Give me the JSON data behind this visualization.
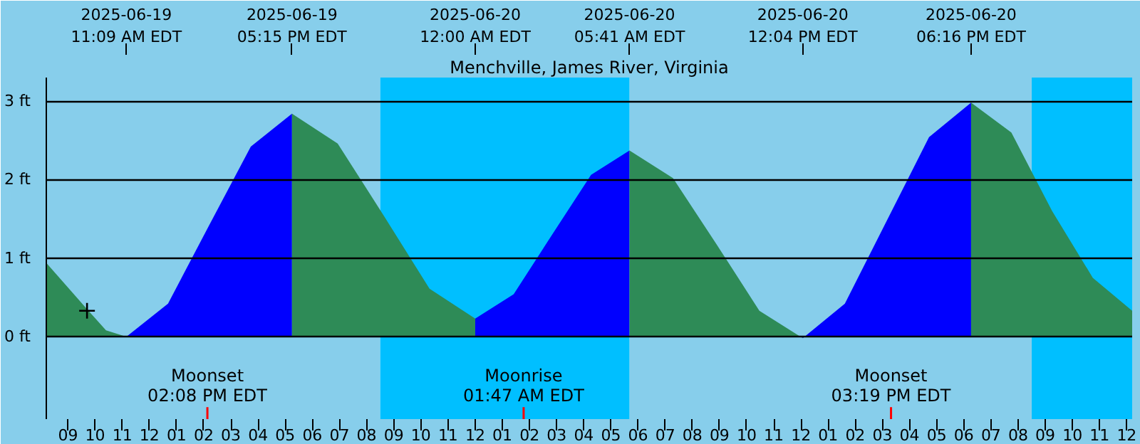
{
  "chart_data": {
    "type": "area",
    "title": "Menchville, James River, Virginia",
    "xlim": [
      "2025-06-19T08:12",
      "2025-06-21T00:12"
    ],
    "xticks": [
      {
        "value": "2025-06-19T09:00",
        "label": "09"
      },
      {
        "value": "2025-06-19T10:00",
        "label": "10"
      },
      {
        "value": "2025-06-19T11:00",
        "label": "11"
      },
      {
        "value": "2025-06-19T12:00",
        "label": "12"
      },
      {
        "value": "2025-06-19T13:00",
        "label": "01"
      },
      {
        "value": "2025-06-19T14:00",
        "label": "02"
      },
      {
        "value": "2025-06-19T15:00",
        "label": "03"
      },
      {
        "value": "2025-06-19T16:00",
        "label": "04"
      },
      {
        "value": "2025-06-19T17:00",
        "label": "05"
      },
      {
        "value": "2025-06-19T18:00",
        "label": "06"
      },
      {
        "value": "2025-06-19T19:00",
        "label": "07"
      },
      {
        "value": "2025-06-19T20:00",
        "label": "08"
      },
      {
        "value": "2025-06-19T21:00",
        "label": "09"
      },
      {
        "value": "2025-06-19T22:00",
        "label": "10"
      },
      {
        "value": "2025-06-19T23:00",
        "label": "11"
      },
      {
        "value": "2025-06-20T00:00",
        "label": "12"
      },
      {
        "value": "2025-06-20T01:00",
        "label": "01"
      },
      {
        "value": "2025-06-20T02:00",
        "label": "02"
      },
      {
        "value": "2025-06-20T03:00",
        "label": "03"
      },
      {
        "value": "2025-06-20T04:00",
        "label": "04"
      },
      {
        "value": "2025-06-20T05:00",
        "label": "05"
      },
      {
        "value": "2025-06-20T06:00",
        "label": "06"
      },
      {
        "value": "2025-06-20T07:00",
        "label": "07"
      },
      {
        "value": "2025-06-20T08:00",
        "label": "08"
      },
      {
        "value": "2025-06-20T09:00",
        "label": "09"
      },
      {
        "value": "2025-06-20T10:00",
        "label": "10"
      },
      {
        "value": "2025-06-20T11:00",
        "label": "11"
      },
      {
        "value": "2025-06-20T12:00",
        "label": "12"
      },
      {
        "value": "2025-06-20T13:00",
        "label": "01"
      },
      {
        "value": "2025-06-20T14:00",
        "label": "02"
      },
      {
        "value": "2025-06-20T15:00",
        "label": "03"
      },
      {
        "value": "2025-06-20T16:00",
        "label": "04"
      },
      {
        "value": "2025-06-20T17:00",
        "label": "05"
      },
      {
        "value": "2025-06-20T18:00",
        "label": "06"
      },
      {
        "value": "2025-06-20T19:00",
        "label": "07"
      },
      {
        "value": "2025-06-20T20:00",
        "label": "08"
      },
      {
        "value": "2025-06-20T21:00",
        "label": "09"
      },
      {
        "value": "2025-06-20T22:00",
        "label": "10"
      },
      {
        "value": "2025-06-20T23:00",
        "label": "11"
      },
      {
        "value": "2025-06-21T00:00",
        "label": "12"
      }
    ],
    "x2lim": [
      "2025-06-19T08:12",
      "2025-06-21T00:12"
    ],
    "x2ticks": [
      {
        "value": "2025-06-19T11:09",
        "label": "2025-06-19\n11:09 AM EDT"
      },
      {
        "value": "2025-06-19T17:15",
        "label": "2025-06-19\n05:15 PM EDT"
      },
      {
        "value": "2025-06-20T00:00",
        "label": "2025-06-20\n12:00 AM EDT"
      },
      {
        "value": "2025-06-20T05:41",
        "label": "2025-06-20\n05:41 AM EDT"
      },
      {
        "value": "2025-06-20T12:04",
        "label": "2025-06-20\n12:04 PM EDT"
      },
      {
        "value": "2025-06-20T18:16",
        "label": "2025-06-20\n06:16 PM EDT"
      }
    ],
    "ylim": [
      -1.05,
      3.3
    ],
    "yticks": [
      {
        "value": 0,
        "label": "0 ft"
      },
      {
        "value": 1,
        "label": "1 ft"
      },
      {
        "value": 2,
        "label": "2 ft"
      },
      {
        "value": 3,
        "label": "3 ft"
      }
    ],
    "grid": "y",
    "bands": [
      {
        "axis": "x",
        "from": "2025-06-19T08:12",
        "to": "2025-06-19T20:30",
        "label": null,
        "color": "#87ceeb"
      },
      {
        "axis": "x",
        "from": "2025-06-20T05:41",
        "to": "2025-06-20T20:30",
        "label": null,
        "color": "#87ceeb"
      },
      {
        "axis": "x",
        "from": "2025-06-19T20:30",
        "to": "2025-06-20T05:41",
        "label": null,
        "color": "#00bfff"
      },
      {
        "axis": "x",
        "from": "2025-06-20T20:30",
        "to": "2025-06-21T00:12",
        "label": null,
        "color": "#00bfff"
      }
    ],
    "ref_lines": [
      {
        "axis": "x",
        "value": "2025-06-19T14:08",
        "label": "Moonset\n02:08 PM EDT",
        "color": "#ff0000"
      },
      {
        "axis": "x",
        "value": "2025-06-20T01:47",
        "label": "Moonrise\n01:47 AM EDT",
        "color": "#ff0000"
      },
      {
        "axis": "x",
        "value": "2025-06-20T15:19",
        "label": "Moonset\n03:19 PM EDT",
        "color": "#ff0000"
      }
    ],
    "series": [
      {
        "color": "#2e8b57",
        "x": [
          "2025-06-19T08:12",
          "2025-06-19T09:42",
          "2025-06-19T10:24",
          "2025-06-19T11:09"
        ],
        "values": [
          0.94,
          0.35,
          0.08,
          0.0
        ]
      },
      {
        "color": "#0000ff",
        "x": [
          "2025-06-19T11:09",
          "2025-06-19T12:41",
          "2025-06-19T14:12",
          "2025-06-19T15:44",
          "2025-06-19T17:15"
        ],
        "values": [
          0.0,
          0.42,
          1.42,
          2.42,
          2.84
        ]
      },
      {
        "color": "#2e8b57",
        "x": [
          "2025-06-19T17:15",
          "2025-06-19T18:56",
          "2025-06-19T20:38",
          "2025-06-19T22:19",
          "2025-06-20T00:00"
        ],
        "values": [
          2.84,
          2.46,
          1.54,
          0.61,
          0.23
        ]
      },
      {
        "color": "#0000ff",
        "x": [
          "2025-06-20T00:00",
          "2025-06-20T01:25",
          "2025-06-20T02:50",
          "2025-06-20T04:16",
          "2025-06-20T05:41"
        ],
        "values": [
          0.23,
          0.54,
          1.3,
          2.06,
          2.37
        ]
      },
      {
        "color": "#2e8b57",
        "x": [
          "2025-06-20T05:41",
          "2025-06-20T07:17",
          "2025-06-20T08:53",
          "2025-06-20T10:28",
          "2025-06-20T12:04"
        ],
        "values": [
          2.37,
          2.02,
          1.18,
          0.33,
          -0.02
        ]
      },
      {
        "color": "#0000ff",
        "x": [
          "2025-06-20T12:04",
          "2025-06-20T13:37",
          "2025-06-20T15:10",
          "2025-06-20T16:43",
          "2025-06-20T18:16"
        ],
        "values": [
          -0.02,
          0.42,
          1.48,
          2.54,
          2.98
        ]
      },
      {
        "color": "#2e8b57",
        "x": [
          "2025-06-20T18:16",
          "2025-06-20T19:45",
          "2025-06-20T21:15",
          "2025-06-20T22:45",
          "2025-06-21T00:12"
        ],
        "values": [
          2.98,
          2.6,
          1.6,
          0.75,
          0.33
        ]
      },
      {
        "type": "scatter",
        "marker": "cross",
        "color": "#000000",
        "x": [
          "2025-06-19T09:42"
        ],
        "values": [
          0.33
        ]
      }
    ]
  }
}
